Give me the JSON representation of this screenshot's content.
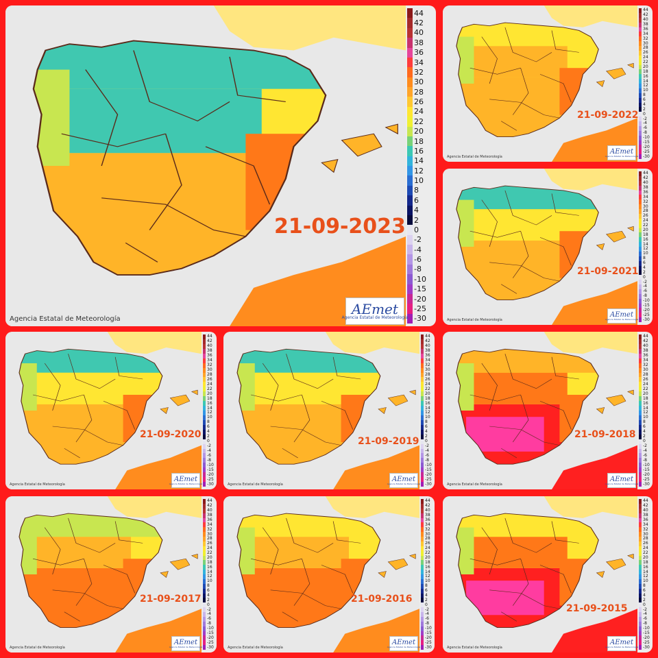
{
  "credit": "Agencia Estatal de Meteorología",
  "logo": {
    "text": "AEmet",
    "subtitle": "Agencia Estatal de Meteorología"
  },
  "legend": {
    "labels": [
      "44",
      "42",
      "40",
      "38",
      "36",
      "34",
      "32",
      "30",
      "28",
      "26",
      "24",
      "22",
      "20",
      "18",
      "16",
      "14",
      "12",
      "10",
      "8",
      "6",
      "4",
      "2",
      "0",
      "-2",
      "-4",
      "-6",
      "-8",
      "-10",
      "-15",
      "-20",
      "-25",
      "-30"
    ],
    "colors": [
      "#8b1a1a",
      "#a52a2a",
      "#b83232",
      "#c8326e",
      "#e6469b",
      "#ff3c3c",
      "#ff6a1e",
      "#ff8c1e",
      "#ffa52a",
      "#ffc832",
      "#ffe632",
      "#f0f032",
      "#c8e650",
      "#78d278",
      "#3cc8b4",
      "#32b4dc",
      "#3296e6",
      "#2a6ed2",
      "#1e4ab4",
      "#14288c",
      "#0a1464",
      "#050a3c",
      "#e6e6f0",
      "#dcd2f0",
      "#c8b4eb",
      "#b496e6",
      "#a078dc",
      "#8c5ad2",
      "#a03cc8",
      "#c82896",
      "#e61e82",
      "#a01eb4"
    ]
  },
  "panels": [
    {
      "date": "21-09-2023",
      "year": 2023
    },
    {
      "date": "21-09-2022",
      "year": 2022
    },
    {
      "date": "21-09-2021",
      "year": 2021
    },
    {
      "date": "21-09-2020",
      "year": 2020
    },
    {
      "date": "21-09-2019",
      "year": 2019
    },
    {
      "date": "21-09-2018",
      "year": 2018
    },
    {
      "date": "21-09-2017",
      "year": 2017
    },
    {
      "date": "21-09-2016",
      "year": 2016
    },
    {
      "date": "21-09-2015",
      "year": 2015
    }
  ],
  "palette": {
    "sea": "#e8e8e8",
    "france": "#ffe680",
    "north": "#40c8b0",
    "cool": "#c8e650",
    "mild": "#ffe632",
    "warm": "#ffb428",
    "hot": "#ff7818",
    "veryhot": "#ff2020",
    "extreme": "#ff3ca0",
    "africa": "#ff8c1e",
    "border": "#5a2a1a",
    "date_color": "#e8501a"
  }
}
